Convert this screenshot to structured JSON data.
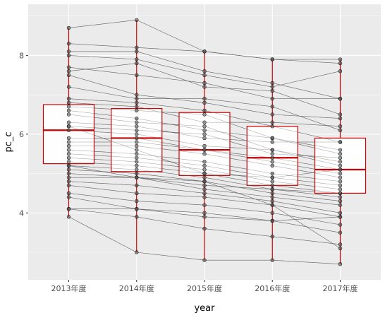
{
  "chart_data": {
    "type": "boxplot",
    "xlabel": "year",
    "ylabel": "pc_c",
    "categories": [
      "2013年度",
      "2014年度",
      "2015年度",
      "2016年度",
      "2017年度"
    ],
    "y_ticks": [
      4,
      6,
      8
    ],
    "ylim": [
      2.3,
      9.3
    ],
    "grid": true,
    "colors": {
      "panel_background": "#ebebeb",
      "grid_major": "#ffffff",
      "box_outline": "#cc0000",
      "median": "#cc0000",
      "whisker": "#cc0000",
      "individual_line": "#555555",
      "point_fill": "#555555",
      "point_outline": "#000000"
    },
    "boxes": [
      {
        "category": "2013年度",
        "min": 3.9,
        "q1": 5.25,
        "median": 6.1,
        "q3": 6.75,
        "max": 8.7
      },
      {
        "category": "2014年度",
        "min": 3.0,
        "q1": 5.05,
        "median": 5.9,
        "q3": 6.65,
        "max": 8.9
      },
      {
        "category": "2015年度",
        "min": 2.8,
        "q1": 4.95,
        "median": 5.6,
        "q3": 6.55,
        "max": 8.1
      },
      {
        "category": "2016年度",
        "min": 2.8,
        "q1": 4.7,
        "median": 5.4,
        "q3": 6.2,
        "max": 7.9
      },
      {
        "category": "2017年度",
        "min": 2.7,
        "q1": 4.5,
        "median": 5.1,
        "q3": 5.9,
        "max": 7.9
      }
    ],
    "series": [
      {
        "values": [
          8.7,
          8.9,
          8.1,
          7.9,
          7.9
        ]
      },
      {
        "values": [
          8.3,
          8.2,
          8.1,
          7.9,
          7.8
        ]
      },
      {
        "values": [
          8.1,
          8.1,
          7.6,
          7.3,
          6.9
        ]
      },
      {
        "values": [
          8.0,
          7.9,
          7.5,
          7.2,
          7.6
        ]
      },
      {
        "values": [
          7.7,
          7.5,
          7.3,
          6.9,
          6.9
        ]
      },
      {
        "values": [
          7.6,
          7.8,
          7.2,
          7.1,
          6.5
        ]
      },
      {
        "values": [
          7.5,
          7.0,
          6.8,
          6.5,
          6.4
        ]
      },
      {
        "values": [
          7.2,
          6.9,
          6.9,
          6.7,
          6.1
        ]
      },
      {
        "values": [
          6.9,
          6.8,
          6.6,
          6.2,
          5.8
        ]
      },
      {
        "values": [
          6.8,
          6.7,
          6.3,
          6.3,
          6.2
        ]
      },
      {
        "values": [
          6.7,
          6.6,
          6.5,
          5.9,
          5.6
        ]
      },
      {
        "values": [
          6.6,
          6.4,
          6.1,
          5.9,
          5.5
        ]
      },
      {
        "values": [
          6.5,
          6.3,
          6.2,
          5.6,
          5.3
        ]
      },
      {
        "values": [
          6.3,
          6.2,
          5.9,
          5.8,
          5.8
        ]
      },
      {
        "values": [
          6.2,
          6.1,
          6.0,
          5.5,
          5.4
        ]
      },
      {
        "values": [
          6.1,
          6.0,
          5.7,
          5.6,
          5.2
        ]
      },
      {
        "values": [
          5.9,
          5.9,
          5.6,
          5.4,
          5.1
        ]
      },
      {
        "values": [
          5.8,
          5.8,
          5.6,
          5.3,
          5.0
        ]
      },
      {
        "values": [
          5.7,
          5.7,
          5.5,
          5.2,
          4.9
        ]
      },
      {
        "values": [
          5.6,
          5.5,
          5.3,
          5.0,
          4.8
        ]
      },
      {
        "values": [
          5.5,
          5.4,
          5.2,
          4.9,
          4.7
        ]
      },
      {
        "values": [
          5.4,
          5.3,
          5.1,
          4.8,
          4.6
        ]
      },
      {
        "values": [
          5.3,
          5.2,
          5.0,
          4.7,
          4.5
        ]
      },
      {
        "values": [
          5.2,
          5.1,
          4.9,
          4.6,
          4.4
        ]
      },
      {
        "values": [
          5.1,
          5.0,
          4.8,
          4.5,
          4.3
        ]
      },
      {
        "values": [
          5.0,
          4.9,
          4.7,
          4.6,
          4.5
        ]
      },
      {
        "values": [
          4.9,
          4.9,
          4.6,
          4.4,
          4.2
        ]
      },
      {
        "values": [
          4.8,
          4.7,
          4.5,
          4.3,
          4.0
        ]
      },
      {
        "values": [
          4.7,
          4.5,
          4.4,
          4.2,
          3.9
        ]
      },
      {
        "values": [
          4.5,
          4.3,
          4.2,
          4.0,
          3.7
        ]
      },
      {
        "values": [
          4.4,
          4.1,
          4.0,
          3.8,
          3.5
        ]
      },
      {
        "values": [
          4.1,
          4.1,
          3.9,
          3.8,
          3.9
        ]
      },
      {
        "values": [
          4.1,
          3.9,
          3.6,
          3.4,
          3.2
        ]
      },
      {
        "values": [
          3.9,
          3.0,
          2.8,
          2.8,
          2.7
        ]
      },
      {
        "values": [
          6.2,
          5.6,
          5.0,
          4.9,
          5.1
        ]
      },
      {
        "values": [
          5.2,
          4.9,
          4.8,
          4.2,
          3.1
        ]
      }
    ]
  }
}
